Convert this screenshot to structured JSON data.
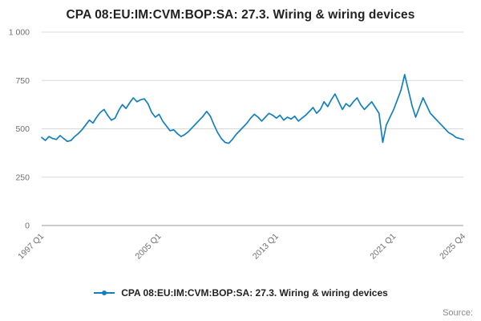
{
  "title": "CPA 08:EU:IM:CVM:BOP:SA: 27.3. Wiring & wiring devices",
  "legend": {
    "label": "CPA 08:EU:IM:CVM:BOP:SA: 27.3. Wiring & wiring devices"
  },
  "source": "Source:",
  "colors": {
    "accent": "#1380BE",
    "grid": "#d9d9d9",
    "axis": "#999999",
    "tick_text": "#707070"
  },
  "chart_data": {
    "type": "line",
    "title": "CPA 08:EU:IM:CVM:BOP:SA: 27.3. Wiring & wiring devices",
    "xlabel": "",
    "ylabel": "",
    "ylim": [
      0,
      1000
    ],
    "grid": "horizontal",
    "legend_position": "bottom",
    "x_range": {
      "start": "1997 Q1",
      "end": "2025 Q4",
      "frequency": "quarterly"
    },
    "x_tick_labels": [
      {
        "index": 0,
        "label": "1997 Q1"
      },
      {
        "index": 32,
        "label": "2005 Q1"
      },
      {
        "index": 64,
        "label": "2013 Q1"
      },
      {
        "index": 96,
        "label": "2021 Q1"
      },
      {
        "index": 115,
        "label": "2025 Q4"
      }
    ],
    "y_ticks": [
      {
        "value": 0,
        "label": "0"
      },
      {
        "value": 250,
        "label": "250"
      },
      {
        "value": 500,
        "label": "500"
      },
      {
        "value": 750,
        "label": "750"
      },
      {
        "value": 1000,
        "label": "1 000"
      }
    ],
    "series": [
      {
        "name": "CPA 08:EU:IM:CVM:BOP:SA: 27.3. Wiring & wiring devices",
        "color": "#1380BE",
        "values": [
          455,
          440,
          460,
          450,
          445,
          465,
          450,
          435,
          440,
          460,
          475,
          495,
          520,
          545,
          530,
          560,
          585,
          600,
          570,
          545,
          555,
          595,
          625,
          605,
          635,
          660,
          640,
          650,
          655,
          630,
          585,
          560,
          575,
          540,
          515,
          490,
          495,
          475,
          460,
          470,
          485,
          505,
          525,
          545,
          565,
          590,
          565,
          520,
          480,
          450,
          430,
          425,
          445,
          470,
          490,
          510,
          530,
          555,
          575,
          560,
          540,
          560,
          580,
          570,
          555,
          570,
          545,
          560,
          550,
          565,
          540,
          555,
          570,
          590,
          610,
          580,
          600,
          640,
          615,
          650,
          680,
          640,
          600,
          630,
          615,
          640,
          660,
          625,
          600,
          620,
          640,
          610,
          580,
          430,
          520,
          560,
          600,
          650,
          700,
          780,
          700,
          620,
          560,
          610,
          660,
          620,
          580,
          560,
          540,
          520,
          500,
          480,
          470,
          455,
          450,
          445
        ]
      }
    ]
  }
}
